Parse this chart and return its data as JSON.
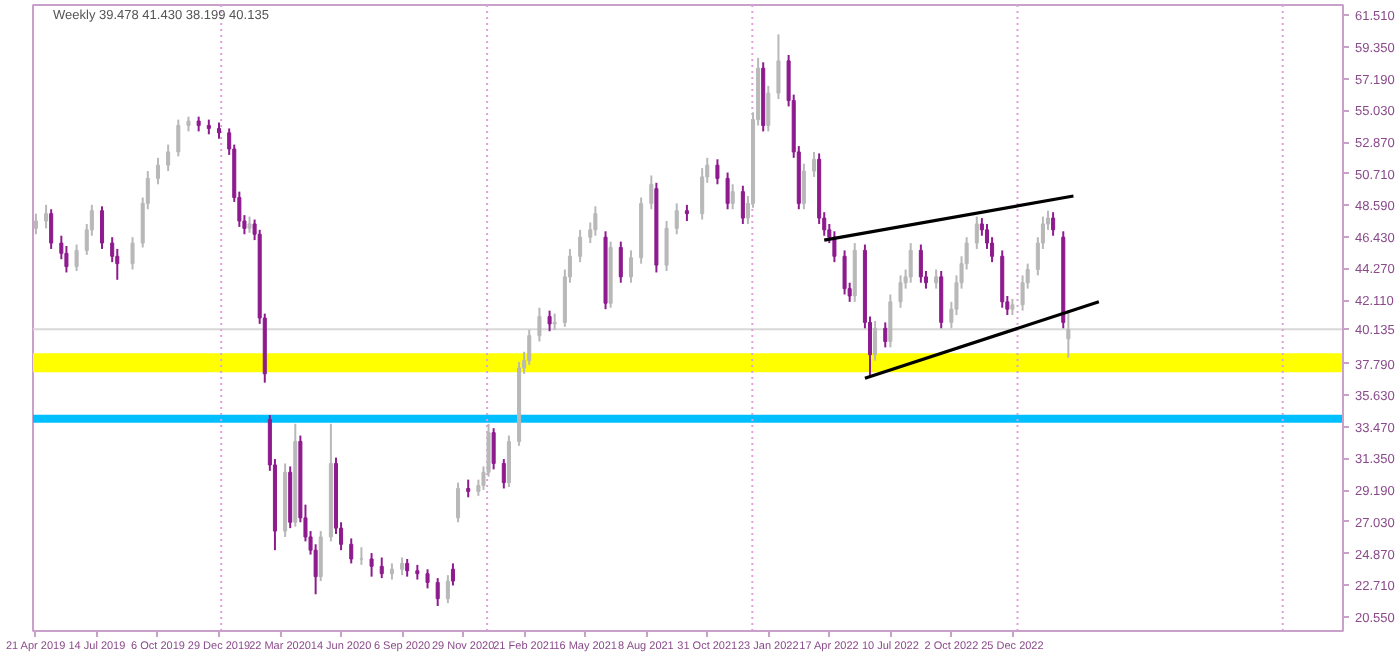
{
  "chart_data": {
    "type": "candlestick",
    "title": "Weekly  39.478 41.430 38.199 40.135",
    "colors": [
      "#b8b8b8",
      "#b8b8b8",
      "#8e1b8e",
      "#8e1b8e",
      "#8e1b8e",
      "#b8b8b8",
      "#b8b8b8",
      "#b8b8b8",
      "#8e1b8e",
      "#8e1b8e",
      "#8e1b8e",
      "#b8b8b8",
      "#b8b8b8",
      "#b8b8b8",
      "#b8b8b8",
      "#b8b8b8",
      "#b8b8b8",
      "#b8b8b8",
      "#8e1b8e",
      "#8e1b8e",
      "#8e1b8e",
      "#8e1b8e",
      "#8e1b8e",
      "#8e1b8e",
      "#8e1b8e",
      "#b8b8b8",
      "#8e1b8e",
      "#8e1b8e",
      "#8e1b8e",
      "#8e1b8e",
      "#8e1b8e",
      "#b8b8b8",
      "#8e1b8e",
      "#b8b8b8",
      "#8e1b8e",
      "#8e1b8e",
      "#8e1b8e",
      "#8e1b8e",
      "#b8b8b8",
      "#b8b8b8",
      "#8e1b8e",
      "#8e1b8e",
      "#8e1b8e",
      "#b8b8b8",
      "#8e1b8e",
      "#8e1b8e",
      "#b8b8b8",
      "#b8b8b8",
      "#8e1b8e",
      "#8e1b8e",
      "#8e1b8e",
      "#8e1b8e",
      "#b8b8b8",
      "#8e1b8e",
      "#b8b8b8",
      "#8e1b8e",
      "#b8b8b8",
      "#b8b8b8",
      "#b8b8b8",
      "#8e1b8e",
      "#8e1b8e",
      "#b8b8b8",
      "#b8b8b8",
      "#b8b8b8",
      "#b8b8b8",
      "#b8b8b8",
      "#8e1b8e",
      "#b8b8b8",
      "#b8b8b8",
      "#b8b8b8",
      "#b8b8b8",
      "#b8b8b8",
      "#b8b8b8",
      "#8e1b8e",
      "#b8b8b8",
      "#8e1b8e",
      "#b8b8b8",
      "#b8b8b8",
      "#b8b8b8",
      "#8e1b8e",
      "#b8b8b8",
      "#b8b8b8",
      "#8e1b8e",
      "#b8b8b8",
      "#b8b8b8",
      "#8e1b8e",
      "#8e1b8e",
      "#b8b8b8",
      "#8e1b8e",
      "#b8b8b8",
      "#b8b8b8",
      "#b8b8b8",
      "#8e1b8e",
      "#b8b8b8",
      "#b8b8b8",
      "#8e1b8e",
      "#8e1b8e",
      "#8e1b8e",
      "#b8b8b8",
      "#b8b8b8",
      "#8e1b8e",
      "#8e1b8e",
      "#8e1b8e",
      "#8e1b8e",
      "#8e1b8e",
      "#8e1b8e",
      "#b8b8b8",
      "#8e1b8e",
      "#8e1b8e",
      "#b8b8b8",
      "#8e1b8e",
      "#b8b8b8",
      "#b8b8b8",
      "#b8b8b8",
      "#b8b8b8",
      "#8e1b8e",
      "#8e1b8e",
      "#b8b8b8",
      "#8e1b8e",
      "#b8b8b8",
      "#b8b8b8",
      "#b8b8b8",
      "#b8b8b8",
      "#b8b8b8",
      "#8e1b8e",
      "#8e1b8e",
      "#8e1b8e",
      "#8e1b8e",
      "#8e1b8e",
      "#b8b8b8",
      "#b8b8b8",
      "#b8b8b8",
      "#b8b8b8",
      "#b8b8b8",
      "#b8b8b8",
      "#8e1b8e",
      "#8e1b8e",
      "#b8b8b8"
    ],
    "x": [
      "2019-04-21",
      "2019-05-05",
      "2019-05-12",
      "2019-05-26",
      "2019-06-02",
      "2019-06-16",
      "2019-06-30",
      "2019-07-07",
      "2019-07-21",
      "2019-08-04",
      "2019-08-11",
      "2019-09-01",
      "2019-09-15",
      "2019-09-22",
      "2019-10-06",
      "2019-10-20",
      "2019-11-03",
      "2019-11-17",
      "2019-12-01",
      "2019-12-15",
      "2019-12-29",
      "2020-01-12",
      "2020-01-19",
      "2020-01-26",
      "2020-02-02",
      "2020-02-09",
      "2020-02-16",
      "2020-02-23",
      "2020-03-01",
      "2020-03-08",
      "2020-03-15",
      "2020-03-29",
      "2020-04-05",
      "2020-04-12",
      "2020-04-19",
      "2020-04-26",
      "2020-05-03",
      "2020-05-10",
      "2020-05-17",
      "2020-05-31",
      "2020-06-07",
      "2020-06-14",
      "2020-06-28",
      "2020-07-12",
      "2020-07-26",
      "2020-08-09",
      "2020-08-23",
      "2020-09-06",
      "2020-09-13",
      "2020-09-27",
      "2020-10-11",
      "2020-10-25",
      "2020-11-08",
      "2020-11-15",
      "2020-11-22",
      "2020-12-06",
      "2020-12-20",
      "2020-12-27",
      "2021-01-03",
      "2021-01-10",
      "2021-01-24",
      "2021-01-31",
      "2021-02-14",
      "2021-02-21",
      "2021-02-28",
      "2021-03-14",
      "2021-03-28",
      "2021-04-04",
      "2021-04-18",
      "2021-04-25",
      "2021-05-09",
      "2021-05-23",
      "2021-05-30",
      "2021-06-13",
      "2021-06-20",
      "2021-07-04",
      "2021-07-18",
      "2021-08-01",
      "2021-08-15",
      "2021-08-22",
      "2021-09-05",
      "2021-09-19",
      "2021-10-03",
      "2021-10-24",
      "2021-10-31",
      "2021-11-14",
      "2021-11-28",
      "2021-12-05",
      "2021-12-19",
      "2021-12-26",
      "2022-01-02",
      "2022-01-09",
      "2022-01-16",
      "2022-01-23",
      "2022-02-06",
      "2022-02-20",
      "2022-02-27",
      "2022-03-06",
      "2022-03-13",
      "2022-03-27",
      "2022-04-03",
      "2022-04-10",
      "2022-04-17",
      "2022-04-24",
      "2022-05-08",
      "2022-05-15",
      "2022-05-22",
      "2022-06-05",
      "2022-06-12",
      "2022-06-19",
      "2022-07-03",
      "2022-07-10",
      "2022-07-24",
      "2022-07-31",
      "2022-08-07",
      "2022-08-21",
      "2022-08-28",
      "2022-09-11",
      "2022-09-18",
      "2022-10-02",
      "2022-10-09",
      "2022-10-16",
      "2022-10-23",
      "2022-11-06",
      "2022-11-13",
      "2022-11-20",
      "2022-11-27",
      "2022-12-11",
      "2022-12-18",
      "2022-12-25",
      "2023-01-08",
      "2023-01-15",
      "2023-01-29",
      "2023-02-05",
      "2023-02-12",
      "2023-02-19",
      "2023-03-05",
      "2023-03-12"
    ],
    "ohlc": [
      [
        47.0,
        48.0,
        46.6,
        47.5
      ],
      [
        47.5,
        48.6,
        47.0,
        48.0
      ],
      [
        48.0,
        48.3,
        45.6,
        46.0
      ],
      [
        46.0,
        46.5,
        44.9,
        45.3
      ],
      [
        45.3,
        45.8,
        44.0,
        44.4
      ],
      [
        44.4,
        45.9,
        44.1,
        45.5
      ],
      [
        45.5,
        47.3,
        45.2,
        46.9
      ],
      [
        46.9,
        48.6,
        46.5,
        48.2
      ],
      [
        48.2,
        48.5,
        45.6,
        46.0
      ],
      [
        46.0,
        46.4,
        44.7,
        45.1
      ],
      [
        45.1,
        45.6,
        43.5,
        44.6
      ],
      [
        44.6,
        46.4,
        44.2,
        46.0
      ],
      [
        46.0,
        49.1,
        45.7,
        48.7
      ],
      [
        48.7,
        50.9,
        48.3,
        50.4
      ],
      [
        50.4,
        51.8,
        50.0,
        51.3
      ],
      [
        51.3,
        52.7,
        50.9,
        52.2
      ],
      [
        52.2,
        54.4,
        51.9,
        54.0
      ],
      [
        54.0,
        54.6,
        53.6,
        54.3
      ],
      [
        54.3,
        54.6,
        53.6,
        54.0
      ],
      [
        54.0,
        54.4,
        53.4,
        53.8
      ],
      [
        53.8,
        54.2,
        53.1,
        53.5
      ],
      [
        53.5,
        53.8,
        52.0,
        52.4
      ],
      [
        52.4,
        52.7,
        48.8,
        49.1
      ],
      [
        49.1,
        49.5,
        47.1,
        47.5
      ],
      [
        47.5,
        47.9,
        46.6,
        47.0
      ],
      [
        47.0,
        47.8,
        46.7,
        47.3
      ],
      [
        47.3,
        47.6,
        46.2,
        46.6
      ],
      [
        46.6,
        46.9,
        40.5,
        40.9
      ],
      [
        40.9,
        41.2,
        36.5,
        37.1
      ],
      [
        34.0,
        34.3,
        30.5,
        30.9
      ],
      [
        30.9,
        31.3,
        25.1,
        26.4
      ],
      [
        26.4,
        31.0,
        26.0,
        30.4
      ],
      [
        30.4,
        30.8,
        26.6,
        27.0
      ],
      [
        27.0,
        33.7,
        26.7,
        32.5
      ],
      [
        32.5,
        32.9,
        27.0,
        27.3
      ],
      [
        27.3,
        28.2,
        25.7,
        26.0
      ],
      [
        26.0,
        26.4,
        24.8,
        25.1
      ],
      [
        25.1,
        25.5,
        22.1,
        23.3
      ],
      [
        23.3,
        26.4,
        23.0,
        26.0
      ],
      [
        26.0,
        33.7,
        25.7,
        31.0
      ],
      [
        31.0,
        31.4,
        26.2,
        26.6
      ],
      [
        26.6,
        27.0,
        25.1,
        25.5
      ],
      [
        25.5,
        25.9,
        24.2,
        24.5
      ],
      [
        24.5,
        25.3,
        24.1,
        24.5
      ],
      [
        24.5,
        24.9,
        23.3,
        24.0
      ],
      [
        24.0,
        24.6,
        23.2,
        23.5
      ],
      [
        23.5,
        24.2,
        23.1,
        23.8
      ],
      [
        23.8,
        24.6,
        23.4,
        24.2
      ],
      [
        24.2,
        24.5,
        23.3,
        23.7
      ],
      [
        23.7,
        24.1,
        23.1,
        23.5
      ],
      [
        23.5,
        23.8,
        22.5,
        22.9
      ],
      [
        22.9,
        23.2,
        21.3,
        21.8
      ],
      [
        21.8,
        23.4,
        21.5,
        23.0
      ],
      [
        23.8,
        24.2,
        22.7,
        23.0
      ],
      [
        27.3,
        29.7,
        27.0,
        29.3
      ],
      [
        29.3,
        29.9,
        28.7,
        29.1
      ],
      [
        29.1,
        29.9,
        28.8,
        29.5
      ],
      [
        29.5,
        30.8,
        29.2,
        30.4
      ],
      [
        30.4,
        33.7,
        30.1,
        33.1
      ],
      [
        33.1,
        33.4,
        30.6,
        31.0
      ],
      [
        31.0,
        31.3,
        29.3,
        29.7
      ],
      [
        29.7,
        32.9,
        29.4,
        32.5
      ],
      [
        32.5,
        37.9,
        32.2,
        37.5
      ],
      [
        37.5,
        38.6,
        37.1,
        38.0
      ],
      [
        38.0,
        40.1,
        37.7,
        39.7
      ],
      [
        39.7,
        41.6,
        39.3,
        41.0
      ],
      [
        41.0,
        41.4,
        40.0,
        40.5
      ],
      [
        40.5,
        41.2,
        40.1,
        40.6
      ],
      [
        40.6,
        44.2,
        40.3,
        43.7
      ],
      [
        43.7,
        45.6,
        43.3,
        45.1
      ],
      [
        45.1,
        46.9,
        44.7,
        46.4
      ],
      [
        46.4,
        47.4,
        46.0,
        46.9
      ],
      [
        46.9,
        48.5,
        46.5,
        48.0
      ],
      [
        46.4,
        46.8,
        41.5,
        41.9
      ],
      [
        41.9,
        46.1,
        41.6,
        45.7
      ],
      [
        45.7,
        46.1,
        43.3,
        43.7
      ],
      [
        43.7,
        45.5,
        43.3,
        45.0
      ],
      [
        45.0,
        49.1,
        44.6,
        48.7
      ],
      [
        48.7,
        50.6,
        48.3,
        50.0
      ],
      [
        49.7,
        50.1,
        44.0,
        44.5
      ],
      [
        44.5,
        47.5,
        44.1,
        47.0
      ],
      [
        47.0,
        48.7,
        46.6,
        48.2
      ],
      [
        48.2,
        48.6,
        47.5,
        48.0
      ],
      [
        48.0,
        51.1,
        47.6,
        50.5
      ],
      [
        50.5,
        51.8,
        50.1,
        51.3
      ],
      [
        51.3,
        51.7,
        50.0,
        50.4
      ],
      [
        50.4,
        50.8,
        48.3,
        48.7
      ],
      [
        48.7,
        50.0,
        48.3,
        49.5
      ],
      [
        49.5,
        49.9,
        47.3,
        47.7
      ],
      [
        47.7,
        49.2,
        47.3,
        48.7
      ],
      [
        48.7,
        54.9,
        48.4,
        54.4
      ],
      [
        54.4,
        58.6,
        54.0,
        57.9
      ],
      [
        57.9,
        58.3,
        53.6,
        54.0
      ],
      [
        54.0,
        56.7,
        53.6,
        56.2
      ],
      [
        56.2,
        60.2,
        55.8,
        58.4
      ],
      [
        58.4,
        58.8,
        55.3,
        55.7
      ],
      [
        55.7,
        56.1,
        51.8,
        52.2
      ],
      [
        52.2,
        52.6,
        48.3,
        48.7
      ],
      [
        48.7,
        51.4,
        48.3,
        50.9
      ],
      [
        50.9,
        52.2,
        50.5,
        51.7
      ],
      [
        51.7,
        52.1,
        47.3,
        47.7
      ],
      [
        47.7,
        48.1,
        46.5,
        46.9
      ],
      [
        46.9,
        47.3,
        46.0,
        46.4
      ],
      [
        46.4,
        46.8,
        44.7,
        45.1
      ],
      [
        45.1,
        45.5,
        42.5,
        42.9
      ],
      [
        42.9,
        43.3,
        42.0,
        42.4
      ],
      [
        42.4,
        46.0,
        42.0,
        45.5
      ],
      [
        45.5,
        45.9,
        40.2,
        40.6
      ],
      [
        40.6,
        41.0,
        36.9,
        38.4
      ],
      [
        38.4,
        40.7,
        38.0,
        40.2
      ],
      [
        40.2,
        40.6,
        38.9,
        39.3
      ],
      [
        39.3,
        42.5,
        38.9,
        42.0
      ],
      [
        42.0,
        43.8,
        41.6,
        43.3
      ],
      [
        43.3,
        44.2,
        42.9,
        43.7
      ],
      [
        43.7,
        46.0,
        43.3,
        45.5
      ],
      [
        45.5,
        45.9,
        43.3,
        43.7
      ],
      [
        43.7,
        44.1,
        42.9,
        43.3
      ],
      [
        43.3,
        44.2,
        42.9,
        43.7
      ],
      [
        43.7,
        44.1,
        40.2,
        40.6
      ],
      [
        40.6,
        42.0,
        40.2,
        41.5
      ],
      [
        41.5,
        43.8,
        41.1,
        43.3
      ],
      [
        43.3,
        45.1,
        42.9,
        44.6
      ],
      [
        44.6,
        46.4,
        44.2,
        46.0
      ],
      [
        46.0,
        47.8,
        45.6,
        47.3
      ],
      [
        47.3,
        47.7,
        46.5,
        46.9
      ],
      [
        46.9,
        47.3,
        45.6,
        46.0
      ],
      [
        46.0,
        46.4,
        44.7,
        45.1
      ],
      [
        45.1,
        45.5,
        41.6,
        42.0
      ],
      [
        42.0,
        42.4,
        41.1,
        41.5
      ],
      [
        41.5,
        42.2,
        41.1,
        41.8
      ],
      [
        41.8,
        43.8,
        41.4,
        43.3
      ],
      [
        43.3,
        44.6,
        42.9,
        44.2
      ],
      [
        44.2,
        46.4,
        43.8,
        46.0
      ],
      [
        46.0,
        47.8,
        45.6,
        47.3
      ],
      [
        47.3,
        48.2,
        46.9,
        47.7
      ],
      [
        47.7,
        48.1,
        46.5,
        46.9
      ],
      [
        46.4,
        46.8,
        40.2,
        40.6
      ],
      [
        39.478,
        41.43,
        38.199,
        40.135
      ]
    ],
    "series": [
      {
        "type": "line",
        "color": "#000000",
        "x": [
          "2022-04-10",
          "2023-03-19"
        ],
        "values": [
          46.2,
          49.2
        ]
      },
      {
        "type": "line",
        "color": "#000000",
        "x": [
          "2022-06-05",
          "2023-04-23"
        ],
        "values": [
          36.8,
          42.0
        ]
      }
    ],
    "ref_lines": [
      {
        "axis": "y",
        "value": 34.05,
        "label": null,
        "color": "#00bfff"
      },
      {
        "axis": "y",
        "value": 40.135,
        "label": "40.135",
        "color": "#d8d8d8"
      },
      {
        "axis": "x",
        "value": "2020-01-01",
        "label": null,
        "color": "#dda0dd",
        "line_style": "dotted"
      },
      {
        "axis": "x",
        "value": "2021-01-01",
        "label": null,
        "color": "#dda0dd",
        "line_style": "dotted"
      },
      {
        "axis": "x",
        "value": "2022-01-01",
        "label": null,
        "color": "#dda0dd",
        "line_style": "dotted"
      },
      {
        "axis": "x",
        "value": "2023-01-01",
        "label": null,
        "color": "#dda0dd",
        "line_style": "dotted"
      },
      {
        "axis": "x",
        "value": "2024-01-01",
        "label": null,
        "color": "#dda0dd",
        "line_style": "dotted"
      }
    ],
    "bands": [
      {
        "axis": "y",
        "from": 37.2,
        "to": 38.5,
        "label": null,
        "color": "#ffff00"
      }
    ],
    "xlim": [
      "2019-04-17",
      "2024-03-24"
    ],
    "xticks": [
      {
        "value": "2019-04-21",
        "label": "21 Apr 2019"
      },
      {
        "value": "2019-07-14",
        "label": "14 Jul 2019"
      },
      {
        "value": "2019-10-06",
        "label": "6 Oct 2019"
      },
      {
        "value": "2019-12-29",
        "label": "29 Dec 2019"
      },
      {
        "value": "2020-03-22",
        "label": "22 Mar 2020"
      },
      {
        "value": "2020-06-14",
        "label": "14 Jun 2020"
      },
      {
        "value": "2020-09-06",
        "label": "6 Sep 2020"
      },
      {
        "value": "2020-11-29",
        "label": "29 Nov 2020"
      },
      {
        "value": "2021-02-21",
        "label": "21 Feb 2021"
      },
      {
        "value": "2021-05-16",
        "label": "16 May 2021"
      },
      {
        "value": "2021-08-08",
        "label": "8 Aug 2021"
      },
      {
        "value": "2021-10-31",
        "label": "31 Oct 2021"
      },
      {
        "value": "2022-01-23",
        "label": "23 Jan 2022"
      },
      {
        "value": "2022-04-17",
        "label": "17 Apr 2022"
      },
      {
        "value": "2022-07-10",
        "label": "10 Jul 2022"
      },
      {
        "value": "2022-10-02",
        "label": "2 Oct 2022"
      },
      {
        "value": "2022-12-25",
        "label": "25 Dec 2022"
      }
    ],
    "ylim": [
      19.6,
      62.2
    ],
    "yticks": [
      {
        "value": 61.51,
        "label": "61.510"
      },
      {
        "value": 59.35,
        "label": "59.350"
      },
      {
        "value": 57.19,
        "label": "57.190"
      },
      {
        "value": 55.03,
        "label": "55.030"
      },
      {
        "value": 52.87,
        "label": "52.870"
      },
      {
        "value": 50.71,
        "label": "50.710"
      },
      {
        "value": 48.59,
        "label": "48.590"
      },
      {
        "value": 46.43,
        "label": "46.430"
      },
      {
        "value": 44.27,
        "label": "44.270"
      },
      {
        "value": 42.11,
        "label": "42.110"
      },
      {
        "value": 37.79,
        "label": "37.790"
      },
      {
        "value": 35.63,
        "label": "35.630"
      },
      {
        "value": 33.47,
        "label": "33.470"
      },
      {
        "value": 31.35,
        "label": "31.350"
      },
      {
        "value": 29.19,
        "label": "29.190"
      },
      {
        "value": 27.03,
        "label": "27.030"
      },
      {
        "value": 24.87,
        "label": "24.870"
      },
      {
        "value": 22.71,
        "label": "22.710"
      },
      {
        "value": 20.55,
        "label": "20.550"
      }
    ],
    "grid": false
  }
}
